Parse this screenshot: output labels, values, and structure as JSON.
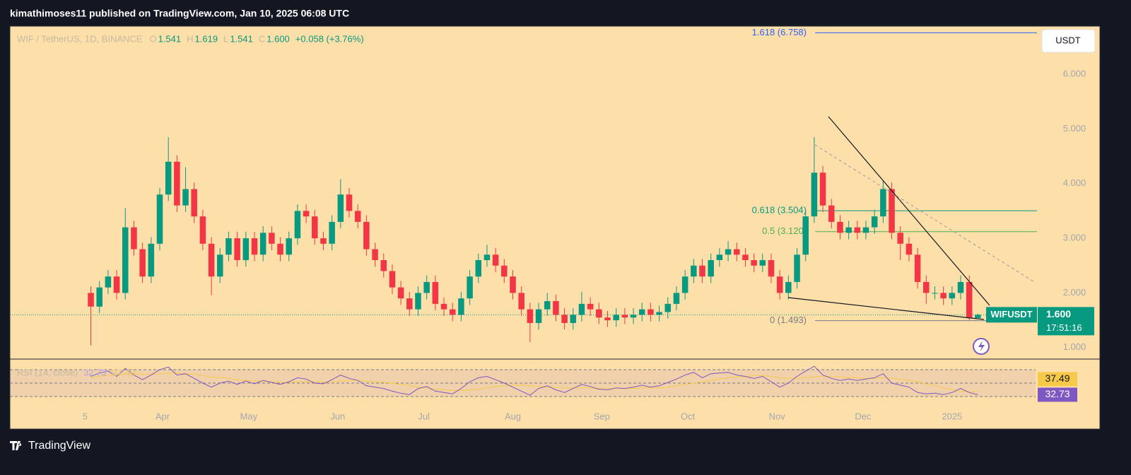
{
  "header": {
    "text": "kimathimoses11 published on TradingView.com, Jan 10, 2025 06:08 UTC"
  },
  "footer": {
    "brand": "TradingView"
  },
  "chart_data": {
    "type": "candlestick",
    "legend": {
      "symbol": "WIF / TetherUS, 1D, BINANCE",
      "items": [
        {
          "key": "O",
          "value": "1.541"
        },
        {
          "key": "H",
          "value": "1.619"
        },
        {
          "key": "L",
          "value": "1.541"
        },
        {
          "key": "C",
          "value": "1.600"
        }
      ],
      "change": "+0.058 (+3.76%)"
    },
    "currency": "USDT",
    "up_color": "#089981",
    "down_color": "#f23645",
    "series": [
      {
        "name": "WIFUSDT",
        "open": [
          2.0,
          1.75,
          2.1,
          2.3,
          2.0,
          3.2,
          2.8,
          2.3,
          2.9,
          3.8,
          4.4,
          3.6,
          3.9,
          3.4,
          2.9,
          2.3,
          2.7,
          3.0,
          2.6,
          3.0,
          2.7,
          3.1,
          2.9,
          2.7,
          3.0,
          3.5,
          3.4,
          3.0,
          2.9,
          3.3,
          3.8,
          3.5,
          3.3,
          2.8,
          2.6,
          2.4,
          2.1,
          1.9,
          1.7,
          2.0,
          2.2,
          1.8,
          1.7,
          1.6,
          1.9,
          2.3,
          2.6,
          2.7,
          2.5,
          2.3,
          2.0,
          1.7,
          1.45,
          1.7,
          1.85,
          1.6,
          1.45,
          1.6,
          1.8,
          1.7,
          1.55,
          1.5,
          1.6,
          1.55,
          1.6,
          1.7,
          1.6,
          1.65,
          1.8,
          2.0,
          2.3,
          2.5,
          2.3,
          2.6,
          2.7,
          2.8,
          2.7,
          2.6,
          2.5,
          2.6,
          2.3,
          2.0,
          2.2,
          2.7,
          3.4,
          4.2,
          3.6,
          3.3,
          3.1,
          3.2,
          3.1,
          3.2,
          3.4,
          3.9,
          3.1,
          2.9,
          2.7,
          2.2,
          2.0,
          2.0,
          1.9,
          2.0,
          2.2,
          1.541
        ],
        "high": [
          2.12,
          2.22,
          2.42,
          2.42,
          3.55,
          3.32,
          2.92,
          3.02,
          3.92,
          4.85,
          4.52,
          4.3,
          4.02,
          3.52,
          3.02,
          2.82,
          3.12,
          3.12,
          3.12,
          3.12,
          3.22,
          3.22,
          3.02,
          3.12,
          3.62,
          3.62,
          3.52,
          3.12,
          3.42,
          4.08,
          3.92,
          3.62,
          3.42,
          2.92,
          2.72,
          2.52,
          2.22,
          2.02,
          2.12,
          2.32,
          2.32,
          1.92,
          1.82,
          2.02,
          2.42,
          2.72,
          2.88,
          2.82,
          2.62,
          2.42,
          2.12,
          1.82,
          1.82,
          2.0,
          1.97,
          1.72,
          1.72,
          2.02,
          1.92,
          1.82,
          1.67,
          1.72,
          1.72,
          1.72,
          1.82,
          1.82,
          1.77,
          1.92,
          2.12,
          2.42,
          2.62,
          2.62,
          2.72,
          2.82,
          2.95,
          2.92,
          2.82,
          2.72,
          2.72,
          2.72,
          2.42,
          2.32,
          2.82,
          3.52,
          4.85,
          4.32,
          3.72,
          3.42,
          3.32,
          3.32,
          3.32,
          3.52,
          4.05,
          4.02,
          3.22,
          3.02,
          2.82,
          2.32,
          2.12,
          2.12,
          2.12,
          2.32,
          2.32,
          1.619
        ],
        "low": [
          1.04,
          1.63,
          1.98,
          1.88,
          1.88,
          2.68,
          2.18,
          2.18,
          2.78,
          3.68,
          3.48,
          3.48,
          3.28,
          2.78,
          1.96,
          2.18,
          2.58,
          2.48,
          2.48,
          2.58,
          2.58,
          2.78,
          2.58,
          2.58,
          2.88,
          3.28,
          2.88,
          2.78,
          2.78,
          3.18,
          3.38,
          3.18,
          2.68,
          2.48,
          2.28,
          1.98,
          1.78,
          1.58,
          1.58,
          1.88,
          1.68,
          1.58,
          1.48,
          1.48,
          1.78,
          2.18,
          2.48,
          2.38,
          2.18,
          1.88,
          1.58,
          1.1,
          1.33,
          1.58,
          1.48,
          1.33,
          1.33,
          1.48,
          1.58,
          1.43,
          1.38,
          1.38,
          1.43,
          1.43,
          1.48,
          1.48,
          1.48,
          1.53,
          1.68,
          1.88,
          2.18,
          2.18,
          2.18,
          2.48,
          2.58,
          2.58,
          2.48,
          2.38,
          2.38,
          2.18,
          1.88,
          1.88,
          2.08,
          2.58,
          3.28,
          3.48,
          3.18,
          2.98,
          2.98,
          2.98,
          2.98,
          3.08,
          3.28,
          2.98,
          2.6,
          2.58,
          2.08,
          1.8,
          1.88,
          1.78,
          1.78,
          1.88,
          1.5,
          1.541
        ],
        "close": [
          1.75,
          2.1,
          2.3,
          2.0,
          3.2,
          2.8,
          2.3,
          2.9,
          3.8,
          4.4,
          3.6,
          3.9,
          3.4,
          2.9,
          2.3,
          2.7,
          3.0,
          2.6,
          3.0,
          2.7,
          3.1,
          2.9,
          2.7,
          3.0,
          3.5,
          3.4,
          3.0,
          2.9,
          3.3,
          3.8,
          3.5,
          3.3,
          2.8,
          2.6,
          2.4,
          2.1,
          1.9,
          1.7,
          2.0,
          2.2,
          1.8,
          1.7,
          1.6,
          1.9,
          2.3,
          2.6,
          2.7,
          2.5,
          2.3,
          2.0,
          1.7,
          1.45,
          1.7,
          1.85,
          1.6,
          1.45,
          1.6,
          1.8,
          1.7,
          1.55,
          1.5,
          1.6,
          1.55,
          1.6,
          1.7,
          1.6,
          1.65,
          1.8,
          2.0,
          2.3,
          2.5,
          2.3,
          2.6,
          2.7,
          2.8,
          2.7,
          2.6,
          2.5,
          2.6,
          2.3,
          2.0,
          2.2,
          2.7,
          3.4,
          4.2,
          3.6,
          3.3,
          3.1,
          3.2,
          3.1,
          3.2,
          3.4,
          3.9,
          3.1,
          2.9,
          2.7,
          2.2,
          2.0,
          2.0,
          1.9,
          2.0,
          2.2,
          1.54,
          1.6
        ]
      }
    ],
    "price_tag": {
      "label": "1.600",
      "countdown": "17:51:16"
    },
    "ylim": [
      0.79,
      6.88
    ],
    "yticks": [
      {
        "value": 1,
        "label": "1.000"
      },
      {
        "value": 2,
        "label": "2.000"
      },
      {
        "value": 3,
        "label": "3.000"
      },
      {
        "value": 4,
        "label": "4.000"
      },
      {
        "value": 5,
        "label": "5.000"
      },
      {
        "value": 6,
        "label": "6.000"
      }
    ],
    "xlim": [
      -9.4,
      109.7
    ],
    "xticks": [
      {
        "value": -0.67,
        "label": "5"
      },
      {
        "value": 8.33,
        "label": "Apr"
      },
      {
        "value": 18.33,
        "label": "May"
      },
      {
        "value": 28.67,
        "label": "Jun"
      },
      {
        "value": 38.67,
        "label": "Jul"
      },
      {
        "value": 49,
        "label": "Aug"
      },
      {
        "value": 59.33,
        "label": "Sep"
      },
      {
        "value": 69.33,
        "label": "Oct"
      },
      {
        "value": 79.67,
        "label": "Nov"
      },
      {
        "value": 89.67,
        "label": "Dec"
      },
      {
        "value": 100,
        "label": "2025"
      }
    ],
    "fib_levels": [
      {
        "label": "1.618 (6.758)",
        "value": 6.758,
        "color": "#2962ff"
      },
      {
        "label": "0.618 (3.504)",
        "value": 3.504,
        "color": "#089981"
      },
      {
        "label": "0.5 (3.120)",
        "value": 3.12,
        "color": "#4caf50"
      },
      {
        "label": "0 (1.493)",
        "value": 1.493,
        "color": "#787b86"
      }
    ],
    "rsi": {
      "label": "RSI (14, close)",
      "color": "#7e57c2",
      "ma_color": "#f7c948",
      "values": [
        60,
        65,
        68,
        60,
        72,
        62,
        55,
        62,
        70,
        74,
        62,
        64,
        57,
        50,
        44,
        50,
        53,
        48,
        53,
        49,
        54,
        51,
        48,
        52,
        58,
        56,
        50,
        49,
        55,
        62,
        57,
        54,
        46,
        44,
        42,
        38,
        35,
        33,
        42,
        45,
        38,
        36,
        34,
        42,
        52,
        58,
        60,
        55,
        50,
        44,
        38,
        32,
        42,
        46,
        40,
        36,
        42,
        48,
        45,
        41,
        40,
        43,
        42,
        44,
        47,
        44,
        46,
        51,
        56,
        62,
        66,
        58,
        64,
        65,
        66,
        62,
        60,
        57,
        60,
        52,
        44,
        50,
        60,
        68,
        75,
        62,
        57,
        54,
        56,
        54,
        56,
        58,
        64,
        50,
        47,
        44,
        36,
        34,
        35,
        33,
        36,
        42,
        36,
        32.73
      ],
      "ma": [
        58,
        60,
        62,
        62,
        64,
        64,
        63,
        63,
        64,
        65,
        65,
        64,
        63,
        61,
        59,
        58,
        57,
        55,
        54,
        53,
        52,
        52,
        51,
        51,
        52,
        52,
        52,
        52,
        52,
        53,
        54,
        54,
        53,
        52,
        51,
        50,
        48,
        46,
        44,
        43,
        41,
        40,
        39,
        39,
        40,
        41,
        43,
        45,
        46,
        47,
        47,
        46,
        45,
        44,
        44,
        43,
        43,
        43,
        43,
        42,
        42,
        42,
        42,
        42,
        43,
        43,
        43,
        44,
        46,
        48,
        50,
        52,
        54,
        56,
        58,
        59,
        60,
        61,
        61,
        60,
        58,
        57,
        57,
        58,
        59,
        60,
        60,
        59,
        58,
        58,
        57,
        57,
        58,
        57,
        56,
        54,
        52,
        49,
        46,
        43,
        40,
        38,
        37,
        37.49
      ],
      "ylim": [
        15.3,
        84.7
      ],
      "yticks": [
        30,
        50,
        70
      ]
    }
  }
}
